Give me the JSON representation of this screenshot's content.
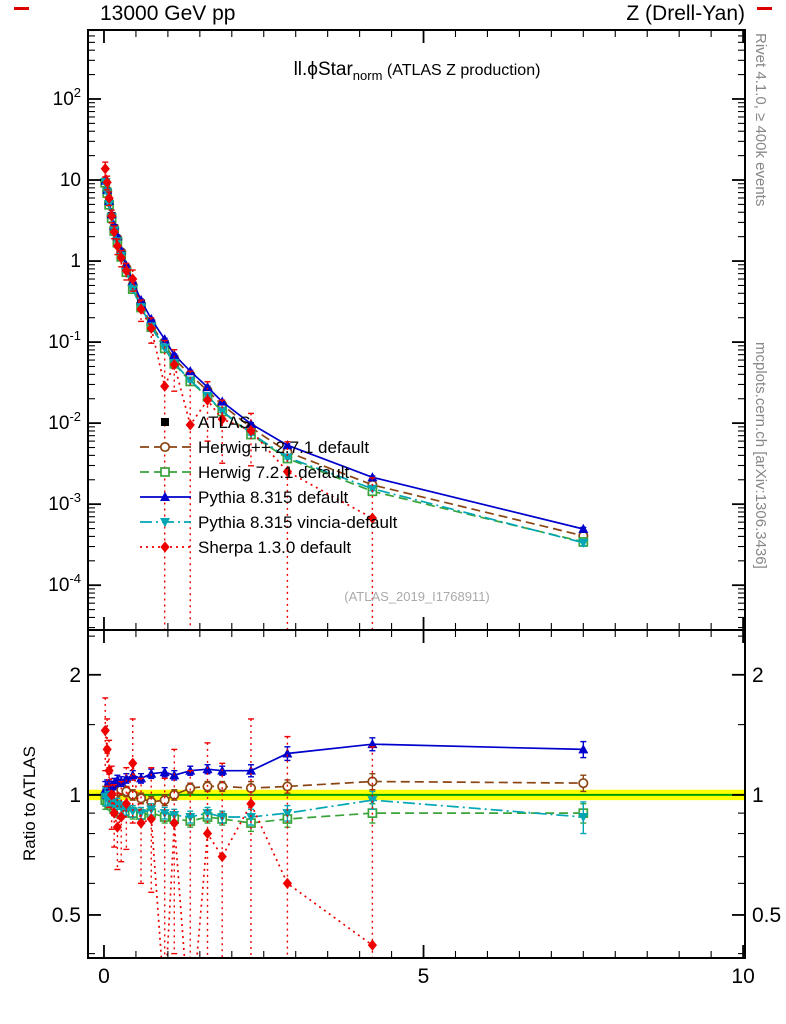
{
  "header": {
    "left": "13000 GeV pp",
    "right": "Z (Drell-Yan)"
  },
  "title": {
    "observable": "ll.ϕStar",
    "subscript": "norm",
    "suffix": " (ATLAS Z production)"
  },
  "watermark": "(ATLAS_2019_I1768911)",
  "side_labels": {
    "rivet": "Rivet 4.1.0, ≥ 400k events",
    "mcplots": "mcplots.cern.ch [arXiv:1306.3436]"
  },
  "ratio_panel_label": "Ratio to ATLAS",
  "axes": {
    "x_tick_labels": [
      "0",
      "5",
      "10"
    ],
    "x_tick_values": [
      0,
      5,
      10
    ],
    "x_minor_step": 0.5,
    "main_y_exponents": [
      2,
      1,
      0,
      -1,
      -2,
      -3,
      -4
    ],
    "ratio_y": {
      "labels": [
        "2",
        "1",
        "0.5"
      ],
      "values": [
        2,
        1,
        0.5
      ],
      "minors": [
        0.4,
        0.6,
        0.7,
        0.8,
        0.9,
        1.5,
        2.5
      ]
    }
  },
  "chart_data": {
    "type": "line",
    "title": "ll.phiStar_norm (ATLAS Z production)",
    "xlabel": "",
    "ylabel_ratio": "Ratio to ATLAS",
    "xlim": [
      -0.25,
      10.03
    ],
    "x": [
      0.02,
      0.05,
      0.08,
      0.12,
      0.16,
      0.21,
      0.27,
      0.35,
      0.45,
      0.58,
      0.74,
      0.95,
      1.1,
      1.35,
      1.62,
      1.85,
      2.3,
      2.87,
      4.2,
      7.5
    ],
    "main_panel": {
      "yscale": "log",
      "ylim": [
        2.8e-05,
        710.0
      ]
    },
    "ratio_panel": {
      "yscale": "log",
      "ylim": [
        0.39,
        2.59
      ],
      "band": [
        0.97,
        1.03
      ],
      "band_color": "#ffff00",
      "band_line_color": "#00a000"
    },
    "series": [
      {
        "key": "atlas",
        "label": "ATLAS",
        "color": "#000000",
        "marker": "square-filled",
        "line": "none",
        "values": [
          9.5,
          7.2,
          5.2,
          3.6,
          2.55,
          1.85,
          1.25,
          0.8,
          0.5,
          0.3,
          0.17,
          0.095,
          0.062,
          0.038,
          0.024,
          0.016,
          0.0085,
          0.0042,
          0.0016,
          0.00038
        ]
      },
      {
        "key": "herwigpp",
        "label": "Herwig++ 2.7.1 default",
        "color": "#8b4513",
        "marker": "circle-open",
        "line": "dashed",
        "ratio": [
          1.0,
          1.02,
          1.01,
          0.99,
          1.0,
          1.02,
          1.03,
          1.02,
          1.0,
          0.98,
          0.96,
          0.97,
          1.0,
          1.04,
          1.05,
          1.05,
          1.04,
          1.05,
          1.08,
          1.07
        ],
        "err": [
          0.05,
          0.04,
          0.03,
          0.03,
          0.03,
          0.03,
          0.03,
          0.03,
          0.03,
          0.03,
          0.03,
          0.03,
          0.03,
          0.03,
          0.03,
          0.03,
          0.04,
          0.04,
          0.05,
          0.05
        ]
      },
      {
        "key": "herwig7",
        "label": "Herwig 7.2.1 default",
        "color": "#3aa33a",
        "marker": "square-open",
        "line": "dashed",
        "ratio": [
          0.97,
          0.96,
          0.95,
          0.94,
          0.92,
          0.91,
          0.9,
          0.91,
          0.9,
          0.89,
          0.9,
          0.88,
          0.87,
          0.86,
          0.88,
          0.87,
          0.85,
          0.87,
          0.9,
          0.9
        ],
        "err": [
          0.05,
          0.04,
          0.03,
          0.03,
          0.03,
          0.03,
          0.03,
          0.03,
          0.03,
          0.03,
          0.03,
          0.03,
          0.03,
          0.03,
          0.03,
          0.03,
          0.04,
          0.04,
          0.05,
          0.05
        ]
      },
      {
        "key": "pythia",
        "label": "Pythia 8.315 default",
        "color": "#0000cd",
        "marker": "triangle-up-filled",
        "line": "solid",
        "ratio": [
          1.03,
          1.05,
          1.06,
          1.05,
          1.07,
          1.09,
          1.08,
          1.1,
          1.12,
          1.1,
          1.13,
          1.14,
          1.12,
          1.15,
          1.16,
          1.15,
          1.15,
          1.27,
          1.34,
          1.3
        ],
        "err": [
          0.05,
          0.04,
          0.03,
          0.03,
          0.03,
          0.03,
          0.03,
          0.03,
          0.03,
          0.03,
          0.03,
          0.03,
          0.03,
          0.03,
          0.03,
          0.03,
          0.04,
          0.05,
          0.05,
          0.06
        ]
      },
      {
        "key": "vincia",
        "label": "Pythia 8.315 vincia-default",
        "color": "#00a6b4",
        "marker": "triangle-down-filled",
        "line": "dashdot",
        "ratio": [
          0.99,
          0.98,
          0.97,
          0.96,
          0.94,
          0.95,
          0.93,
          0.92,
          0.91,
          0.9,
          0.92,
          0.9,
          0.89,
          0.88,
          0.9,
          0.88,
          0.88,
          0.9,
          0.97,
          0.88
        ],
        "err": [
          0.05,
          0.04,
          0.03,
          0.03,
          0.03,
          0.03,
          0.03,
          0.03,
          0.03,
          0.03,
          0.03,
          0.03,
          0.03,
          0.03,
          0.03,
          0.03,
          0.04,
          0.04,
          0.05,
          0.08
        ]
      },
      {
        "key": "sherpa",
        "label": "Sherpa 1.3.0 default",
        "color": "#ee0000",
        "marker": "diamond-filled",
        "line": "dotted",
        "ratio": [
          1.45,
          1.3,
          1.15,
          1.0,
          0.9,
          0.83,
          0.88,
          0.95,
          1.2,
          0.85,
          0.87,
          0.3,
          0.85,
          0.25,
          0.8,
          0.7,
          0.95,
          0.6,
          0.42,
          null
        ],
        "err": [
          0.3,
          0.25,
          0.22,
          0.18,
          0.16,
          0.18,
          0.2,
          0.22,
          0.35,
          0.25,
          0.3,
          0.8,
          0.45,
          0.9,
          0.55,
          0.5,
          0.6,
          0.8,
          0.9,
          0
        ]
      }
    ]
  }
}
